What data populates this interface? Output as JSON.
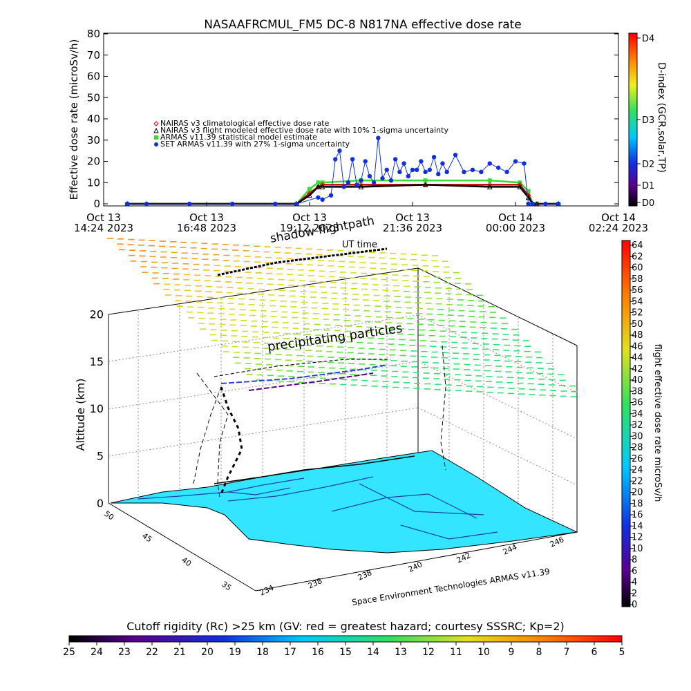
{
  "title": "NASAAFRCMUL_FM5 DC-8   N817NA effective dose rate",
  "colors": {
    "nairas_clim": "#d00000",
    "nairas_flight": "#000000",
    "armas_stat": "#33dd33",
    "set_armas": "#1030e0",
    "ground": "#33e5ff"
  },
  "chart_data": [
    {
      "type": "line",
      "ylabel": "Effective dose rate (microSv/h)",
      "ylim": [
        0,
        80
      ],
      "y_ticks": [
        "0",
        "10",
        "20",
        "30",
        "40",
        "50",
        "60",
        "70",
        "80"
      ],
      "x_ticks": [
        {
          "l1": "Oct 13",
          "l2": "14:24 2023"
        },
        {
          "l1": "Oct 13",
          "l2": "16:48 2023"
        },
        {
          "l1": "Oct 13",
          "l2": "19:12 2023"
        },
        {
          "l1": "Oct 13",
          "l2": "21:36 2023"
        },
        {
          "l1": "Oct 14",
          "l2": "00:00 2023"
        },
        {
          "l1": "Oct 14",
          "l2": "02:24 2023"
        }
      ],
      "x_hours": [
        0,
        2.4,
        4.8,
        7.2,
        9.6,
        12.0
      ],
      "xlim_hours": [
        0,
        12.0
      ],
      "legend": [
        {
          "label": "NAIRAS v3 climatological effective dose rate",
          "marker": "diamond",
          "color": "#d00000"
        },
        {
          "label": "NAIRAS v3 flight modeled effective dose rate with 10% 1-sigma uncertainty",
          "marker": "triangle",
          "color": "#000000"
        },
        {
          "label": "ARMAS v11.39 statistical model estimate",
          "marker": "star",
          "color": "#33dd33"
        },
        {
          "label": "SET ARMAS v11.39 with 27% 1-sigma uncertainty",
          "marker": "circle",
          "color": "#1030e0"
        }
      ],
      "series": [
        {
          "name": "NAIRAS v3 climatological effective dose rate",
          "x": [
            0.55,
            4.5,
            4.8,
            5.0,
            5.1,
            6.0,
            7.5,
            9.0,
            9.7,
            9.9,
            10.0,
            10.1,
            10.6
          ],
          "y": [
            0,
            0,
            5,
            8,
            9,
            9,
            9,
            9,
            9,
            4,
            0,
            0,
            0
          ]
        },
        {
          "name": "NAIRAS v3 flight modeled effective dose rate with 10% 1-sigma uncertainty",
          "x": [
            0.55,
            4.5,
            4.8,
            5.0,
            5.1,
            6.0,
            7.5,
            9.0,
            9.7,
            9.9,
            10.0,
            10.1,
            10.6
          ],
          "y": [
            0,
            0,
            4,
            8,
            8,
            8,
            9,
            8,
            8,
            3,
            0,
            0,
            0
          ]
        },
        {
          "name": "ARMAS v11.39 statistical model estimate",
          "x": [
            0.55,
            4.5,
            4.8,
            5.0,
            5.1,
            6.0,
            7.5,
            9.0,
            9.7,
            9.9,
            10.0,
            10.1,
            10.6
          ],
          "y": [
            0,
            0,
            7,
            10,
            10,
            11,
            11,
            11,
            10,
            6,
            0,
            0,
            0
          ]
        },
        {
          "name": "SET ARMAS v11.39 with 27% 1-sigma uncertainty",
          "x": [
            0.55,
            1.0,
            2.0,
            3.0,
            4.0,
            4.5,
            5.0,
            5.1,
            5.3,
            5.4,
            5.5,
            5.6,
            5.7,
            5.8,
            5.9,
            6.0,
            6.1,
            6.2,
            6.3,
            6.4,
            6.5,
            6.6,
            6.7,
            6.8,
            6.9,
            7.0,
            7.1,
            7.2,
            7.3,
            7.4,
            7.5,
            7.6,
            7.7,
            7.8,
            7.9,
            8.0,
            8.2,
            8.4,
            8.6,
            8.8,
            9.0,
            9.2,
            9.4,
            9.6,
            9.8,
            9.9,
            10.0,
            10.3,
            10.6
          ],
          "y": [
            0,
            0,
            0,
            0,
            0,
            0,
            3,
            2,
            4,
            21,
            25,
            8,
            10,
            21,
            9,
            11,
            20,
            13,
            10,
            31,
            12,
            16,
            11,
            21,
            15,
            19,
            13,
            16,
            16,
            20,
            15,
            16,
            22,
            14,
            19,
            15,
            23,
            15,
            16,
            15,
            19,
            17,
            15,
            20,
            19,
            0,
            0,
            0,
            0
          ]
        }
      ],
      "right_axis": {
        "label": "D-index (GCR,solar,TP)",
        "ticks": [
          "D0",
          "D1",
          "D2",
          "D3",
          "D4"
        ]
      }
    },
    {
      "type": "3d-scatter",
      "zlabel": "Altitude (km)",
      "zlim": [
        0,
        20
      ],
      "z_ticks": [
        "0",
        "5",
        "10",
        "15",
        "20"
      ],
      "lat_ticks": [
        "50",
        "45",
        "40",
        "35"
      ],
      "lon_ticks": [
        "234",
        "238",
        "238",
        "240",
        "242",
        "244",
        "246"
      ],
      "annotations": [
        "shadow flightpath",
        "UT time",
        "precipitating particles"
      ],
      "credit": "Space Environment Technologies ARMAS v11.39",
      "colorbar": {
        "label": "flight effective dose rate microSv/h",
        "ticks": [
          "0",
          "2",
          "4",
          "6",
          "8",
          "10",
          "12",
          "14",
          "16",
          "18",
          "20",
          "22",
          "24",
          "26",
          "28",
          "30",
          "32",
          "34",
          "36",
          "38",
          "40",
          "42",
          "44",
          "46",
          "48",
          "50",
          "52",
          "54",
          "56",
          "58",
          "60",
          "62",
          "64"
        ]
      }
    }
  ],
  "bottom_colorbar": {
    "label": "Cutoff rigidity (Rc) >25 km (GV: red = greatest hazard; courtesy SSSRC; Kp=2)",
    "ticks": [
      "25",
      "24",
      "23",
      "22",
      "21",
      "20",
      "19",
      "18",
      "17",
      "16",
      "15",
      "14",
      "13",
      "12",
      "11",
      "10",
      "9",
      "8",
      "7",
      "6",
      "5"
    ]
  }
}
